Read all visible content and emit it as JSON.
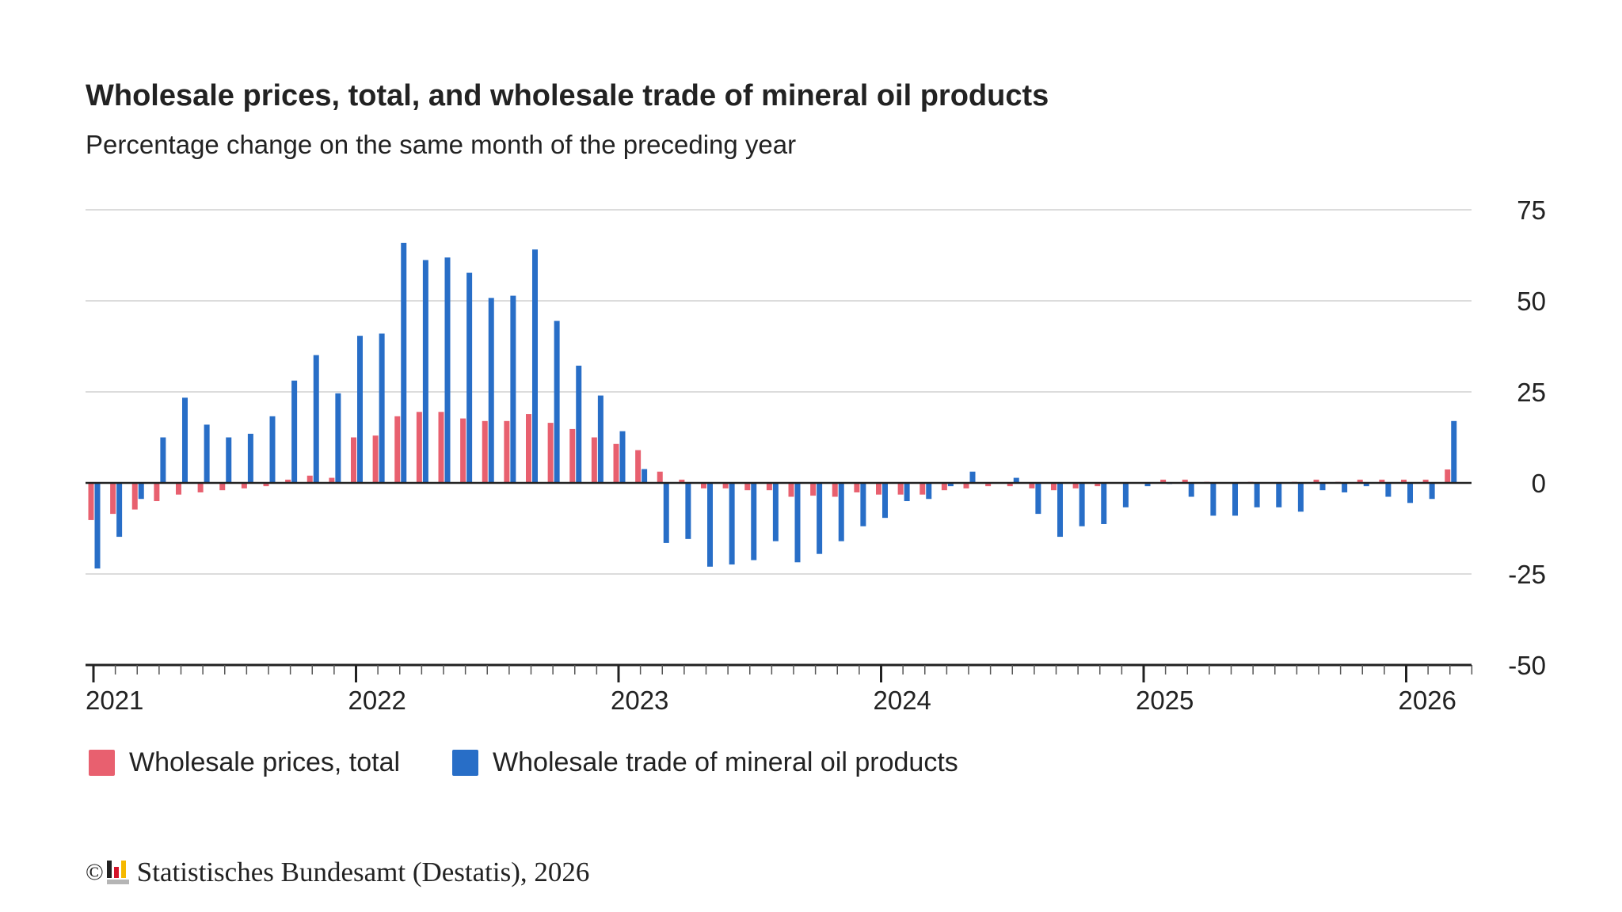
{
  "chart_data": {
    "type": "bar",
    "title": "Wholesale prices, total, and wholesale trade of mineral oil products",
    "subtitle": "Percentage change on the same month of the preceding year",
    "xlabel": "",
    "ylabel": "",
    "ylim": [
      -50,
      75
    ],
    "yticks": [
      "75",
      "50",
      "25",
      "0",
      "-25",
      "-50"
    ],
    "xtick_labels": [
      "2021",
      "2022",
      "2023",
      "2024",
      "2025",
      "2026"
    ],
    "x_start": "2021-01",
    "x_end": "2026-03",
    "frequency": "monthly",
    "grid": true,
    "y_axis_side": "right",
    "legend_position": "bottom-left",
    "series": [
      {
        "name": "Wholesale prices, total",
        "color": "#e8606f",
        "values": [
          -10.2,
          -8.5,
          -7.3,
          -5.0,
          -3.2,
          -2.6,
          -2.0,
          -1.5,
          -0.9,
          0.9,
          2.0,
          1.4,
          12.5,
          13.0,
          18.3,
          19.5,
          19.5,
          17.7,
          17.0,
          17.0,
          18.9,
          16.5,
          14.8,
          12.5,
          10.7,
          9.0,
          3.1,
          0.9,
          -1.5,
          -1.5,
          -2.0,
          -2.0,
          -3.8,
          -3.5,
          -3.8,
          -2.6,
          -3.2,
          -3.2,
          -3.2,
          -2.0,
          -1.5,
          -0.9,
          -0.9,
          -1.5,
          -2.0,
          -1.5,
          -0.9,
          0.0,
          0.2,
          0.9,
          0.9,
          0.3,
          0.0,
          0.3,
          0.0,
          0.3,
          0.9,
          0.3,
          0.9,
          0.9,
          0.9,
          0.9,
          3.7
        ]
      },
      {
        "name": "Wholesale trade of mineral oil products",
        "color": "#286ec7",
        "values": [
          -23.5,
          -14.8,
          -4.4,
          12.5,
          23.4,
          16.0,
          12.5,
          13.5,
          18.3,
          28.1,
          35.1,
          24.6,
          40.4,
          41.0,
          65.9,
          61.2,
          61.9,
          57.7,
          50.8,
          51.4,
          64.1,
          44.5,
          32.2,
          24.0,
          14.2,
          3.8,
          -16.5,
          -15.4,
          -23.0,
          -22.4,
          -21.2,
          -16.0,
          -21.8,
          -19.5,
          -16.0,
          -11.9,
          -9.6,
          -5.0,
          -4.4,
          -0.9,
          3.1,
          0.0,
          1.4,
          -8.5,
          -14.8,
          -11.9,
          -11.3,
          -6.7,
          -0.9,
          -0.3,
          -3.8,
          -9.0,
          -9.0,
          -6.7,
          -6.7,
          -7.9,
          -2.0,
          -2.6,
          -0.9,
          -3.8,
          -5.5,
          -4.4,
          17.0
        ]
      }
    ]
  },
  "footer": {
    "copyright_symbol": "©",
    "source": "Statistisches Bundesamt (Destatis), 2026",
    "logo_colors": [
      "#222222",
      "#d4142a",
      "#f5b800"
    ]
  }
}
